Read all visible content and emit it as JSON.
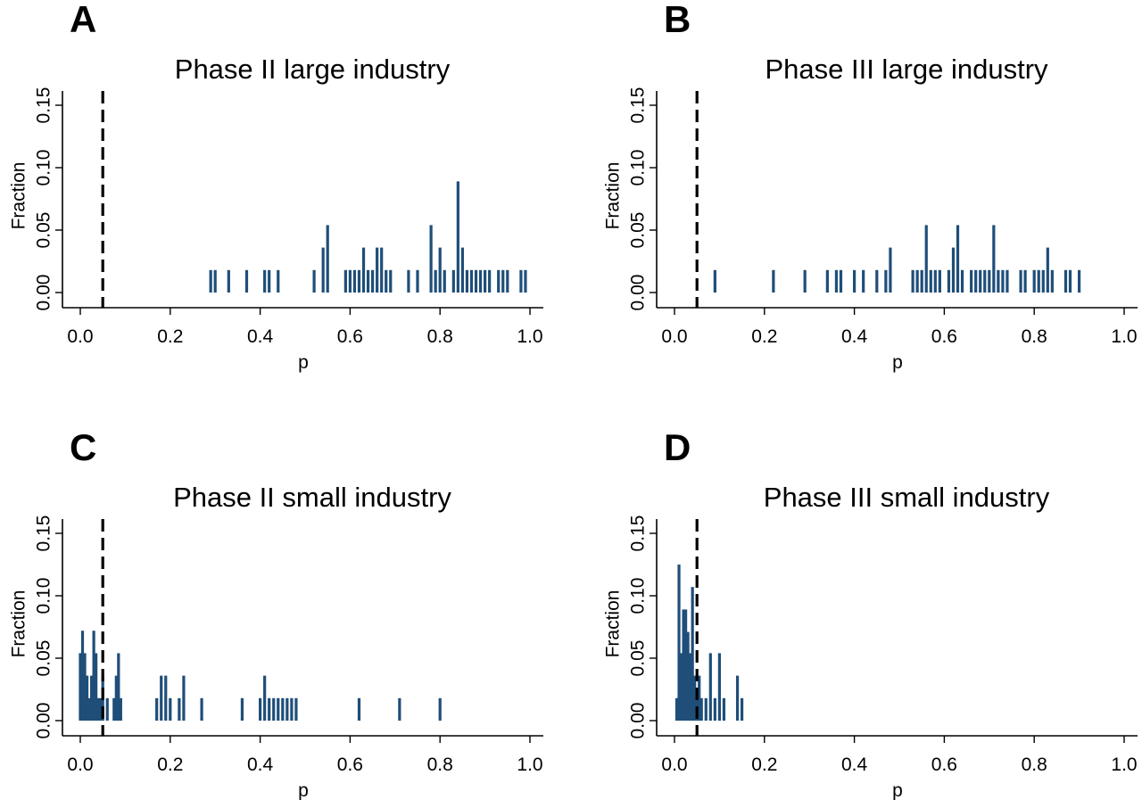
{
  "chart_data": [
    {
      "type": "bar",
      "panel": "A",
      "title": "Phase II large industry",
      "xlabel": "p",
      "ylabel": "Fraction",
      "xlim": [
        0,
        1
      ],
      "ylim": [
        0,
        0.15
      ],
      "xticks": [
        "0.0",
        "0.2",
        "0.4",
        "0.6",
        "0.8",
        "1.0"
      ],
      "yticks": [
        "0.00",
        "0.05",
        "0.10",
        "0.15"
      ],
      "reference_line_x": 0.05,
      "x": [
        0.29,
        0.3,
        0.33,
        0.37,
        0.41,
        0.42,
        0.44,
        0.52,
        0.54,
        0.55,
        0.59,
        0.6,
        0.61,
        0.62,
        0.63,
        0.64,
        0.65,
        0.66,
        0.67,
        0.68,
        0.69,
        0.73,
        0.75,
        0.78,
        0.79,
        0.8,
        0.81,
        0.83,
        0.84,
        0.85,
        0.86,
        0.87,
        0.88,
        0.89,
        0.9,
        0.91,
        0.93,
        0.94,
        0.95,
        0.98,
        0.99
      ],
      "values": [
        0.018,
        0.018,
        0.018,
        0.018,
        0.018,
        0.018,
        0.018,
        0.018,
        0.036,
        0.054,
        0.018,
        0.018,
        0.018,
        0.018,
        0.036,
        0.018,
        0.018,
        0.036,
        0.036,
        0.018,
        0.018,
        0.018,
        0.018,
        0.054,
        0.018,
        0.036,
        0.018,
        0.018,
        0.089,
        0.036,
        0.018,
        0.018,
        0.018,
        0.018,
        0.018,
        0.018,
        0.018,
        0.018,
        0.018,
        0.018,
        0.018
      ]
    },
    {
      "type": "bar",
      "panel": "B",
      "title": "Phase III large industry",
      "xlabel": "p",
      "ylabel": "Fraction",
      "xlim": [
        0,
        1
      ],
      "ylim": [
        0,
        0.15
      ],
      "xticks": [
        "0.0",
        "0.2",
        "0.4",
        "0.6",
        "0.8",
        "1.0"
      ],
      "yticks": [
        "0.00",
        "0.05",
        "0.10",
        "0.15"
      ],
      "reference_line_x": 0.05,
      "x": [
        0.09,
        0.22,
        0.29,
        0.34,
        0.36,
        0.37,
        0.4,
        0.42,
        0.45,
        0.47,
        0.48,
        0.53,
        0.54,
        0.55,
        0.56,
        0.57,
        0.58,
        0.59,
        0.61,
        0.62,
        0.63,
        0.64,
        0.66,
        0.67,
        0.68,
        0.69,
        0.7,
        0.71,
        0.72,
        0.73,
        0.74,
        0.77,
        0.78,
        0.8,
        0.81,
        0.82,
        0.83,
        0.84,
        0.87,
        0.88,
        0.9
      ],
      "values": [
        0.018,
        0.018,
        0.018,
        0.018,
        0.018,
        0.018,
        0.018,
        0.018,
        0.018,
        0.018,
        0.036,
        0.018,
        0.018,
        0.018,
        0.054,
        0.018,
        0.018,
        0.018,
        0.018,
        0.036,
        0.054,
        0.018,
        0.018,
        0.018,
        0.018,
        0.018,
        0.018,
        0.054,
        0.018,
        0.018,
        0.018,
        0.018,
        0.018,
        0.018,
        0.018,
        0.018,
        0.036,
        0.018,
        0.018,
        0.018,
        0.018
      ]
    },
    {
      "type": "bar",
      "panel": "C",
      "title": "Phase II small industry",
      "xlabel": "p",
      "ylabel": "Fraction",
      "xlim": [
        0,
        1
      ],
      "ylim": [
        0,
        0.15
      ],
      "xticks": [
        "0.0",
        "0.2",
        "0.4",
        "0.6",
        "0.8",
        "1.0"
      ],
      "yticks": [
        "0.00",
        "0.05",
        "0.10",
        "0.15"
      ],
      "reference_line_x": 0.05,
      "x": [
        0.0,
        0.005,
        0.01,
        0.015,
        0.02,
        0.025,
        0.03,
        0.035,
        0.04,
        0.045,
        0.05,
        0.06,
        0.075,
        0.08,
        0.085,
        0.09,
        0.17,
        0.18,
        0.19,
        0.2,
        0.22,
        0.23,
        0.27,
        0.36,
        0.4,
        0.41,
        0.42,
        0.43,
        0.44,
        0.45,
        0.46,
        0.47,
        0.48,
        0.62,
        0.71,
        0.8
      ],
      "values": [
        0.054,
        0.072,
        0.054,
        0.036,
        0.018,
        0.036,
        0.072,
        0.054,
        0.018,
        0.018,
        0.036,
        0.018,
        0.018,
        0.036,
        0.054,
        0.018,
        0.018,
        0.036,
        0.036,
        0.018,
        0.018,
        0.036,
        0.018,
        0.018,
        0.018,
        0.036,
        0.018,
        0.018,
        0.018,
        0.018,
        0.018,
        0.018,
        0.018,
        0.018,
        0.018,
        0.018
      ]
    },
    {
      "type": "bar",
      "panel": "D",
      "title": "Phase III small industry",
      "xlabel": "p",
      "ylabel": "Fraction",
      "xlim": [
        0,
        1
      ],
      "ylim": [
        0,
        0.15
      ],
      "xticks": [
        "0.0",
        "0.2",
        "0.4",
        "0.6",
        "0.8",
        "1.0"
      ],
      "yticks": [
        "0.00",
        "0.05",
        "0.10",
        "0.15"
      ],
      "reference_line_x": 0.05,
      "x": [
        0.005,
        0.01,
        0.015,
        0.02,
        0.025,
        0.03,
        0.035,
        0.04,
        0.045,
        0.05,
        0.055,
        0.06,
        0.07,
        0.08,
        0.09,
        0.1,
        0.11,
        0.14,
        0.15
      ],
      "values": [
        0.018,
        0.125,
        0.054,
        0.089,
        0.089,
        0.071,
        0.054,
        0.107,
        0.036,
        0.018,
        0.036,
        0.018,
        0.018,
        0.054,
        0.018,
        0.054,
        0.018,
        0.036,
        0.018
      ]
    }
  ]
}
